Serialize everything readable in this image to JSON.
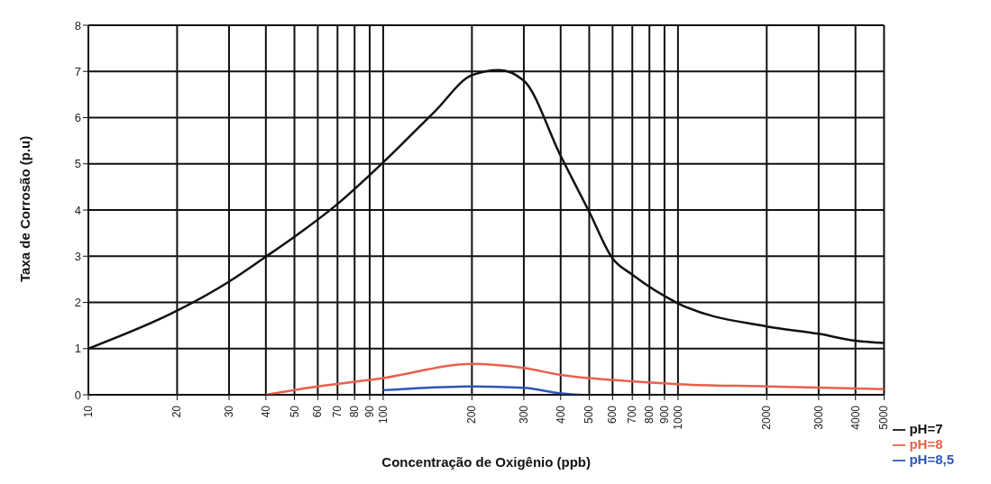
{
  "chart_data": {
    "type": "line",
    "xlabel": "Concentração de Oxigênio (ppb)",
    "ylabel": "Taxa de Corrosão (p.u)",
    "log": "x",
    "xlim": [
      10,
      5000
    ],
    "xticks": [
      10,
      20,
      30,
      40,
      50,
      60,
      70,
      80,
      90,
      100,
      200,
      300,
      400,
      500,
      600,
      700,
      800,
      900,
      1000,
      2000,
      3000,
      4000,
      5000
    ],
    "ylim": [
      0,
      8
    ],
    "yticks": [
      0,
      1,
      2,
      3,
      4,
      5,
      6,
      7,
      8
    ],
    "grid": true,
    "legend": "bottom right",
    "marker": "none",
    "line_style": "solid",
    "series": [
      {
        "name": "pH=8,5",
        "color": "#2e56b8",
        "x": [
          470,
          400,
          300,
          200,
          100
        ],
        "values": [
          0,
          0.03,
          0.15,
          0.18,
          0.1
        ]
      },
      {
        "name": "pH=8",
        "color": "#e8604c",
        "x": [
          40,
          60,
          100,
          200,
          300,
          400,
          500,
          600,
          1000,
          2000,
          5000
        ],
        "values": [
          0,
          0.18,
          0.36,
          0.67,
          0.58,
          0.43,
          0.36,
          0.32,
          0.23,
          0.18,
          0.12
        ]
      },
      {
        "name": "pH=7",
        "color": "#111111",
        "x": [
          10,
          20,
          30,
          40,
          50,
          70,
          100,
          150,
          200,
          247,
          300,
          400,
          500,
          600,
          700,
          1000,
          2000,
          3000,
          4000,
          5000
        ],
        "values": [
          1,
          1.82,
          2.45,
          2.99,
          3.42,
          4.13,
          5.03,
          6.14,
          6.92,
          7.03,
          6.8,
          5.17,
          3.96,
          2.95,
          2.6,
          1.98,
          1.48,
          1.32,
          1.17,
          1.12
        ]
      }
    ]
  }
}
